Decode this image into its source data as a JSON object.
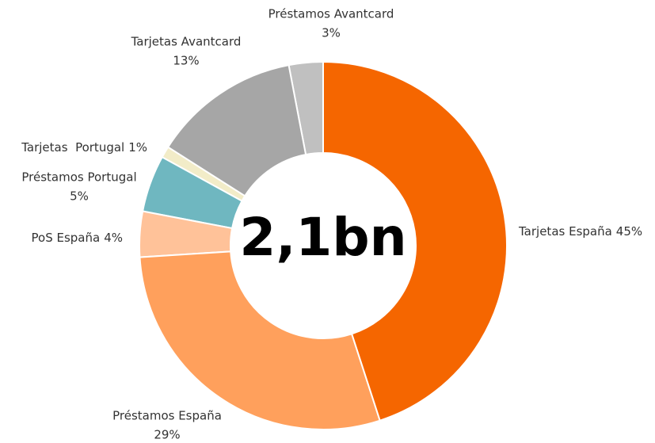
{
  "chart_data": {
    "type": "donut",
    "center_label": "2,1bn",
    "categories": [
      "Tarjetas España",
      "Préstamos España",
      "PoS España",
      "Préstamos Portugal",
      "Tarjetas  Portugal",
      "Tarjetas Avantcard",
      "Préstamos Avantcard"
    ],
    "values": [
      45,
      29,
      4,
      5,
      1,
      13,
      3
    ],
    "value_labels": [
      "45%",
      "29%",
      "4%",
      "5%",
      "1%",
      "13%",
      "3%"
    ],
    "colors": [
      "#f56600",
      "#ffa05c",
      "#ffc299",
      "#6fb7c0",
      "#f2ecc8",
      "#a6a6a6",
      "#c0c0c0"
    ]
  }
}
